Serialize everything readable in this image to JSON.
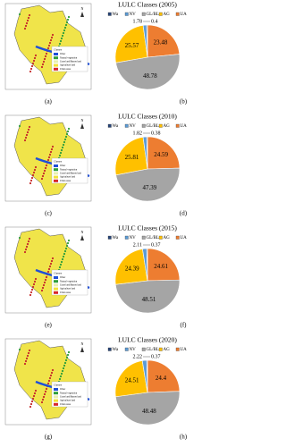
{
  "chart_data": [
    {
      "type": "pie",
      "title": "LULC Classes (2005)",
      "categories": [
        "Wa",
        "NV",
        "GL/BL",
        "AG",
        "UA"
      ],
      "values": [
        0.4,
        1.78,
        48.78,
        25.57,
        23.48
      ],
      "colors": [
        "#264478",
        "#5b9bd5",
        "#a5a5a5",
        "#ffc000",
        "#ed7d31"
      ]
    },
    {
      "type": "pie",
      "title": "LULC Classes (2010)",
      "categories": [
        "Wa",
        "NV",
        "GL/BL",
        "AG",
        "UA"
      ],
      "values": [
        0.38,
        1.82,
        47.39,
        25.81,
        24.59
      ],
      "colors": [
        "#264478",
        "#5b9bd5",
        "#a5a5a5",
        "#ffc000",
        "#ed7d31"
      ]
    },
    {
      "type": "pie",
      "title": "LULC Classes (2015)",
      "categories": [
        "Wa",
        "NV",
        "GL/BL",
        "AG",
        "UA"
      ],
      "values": [
        0.37,
        2.11,
        48.51,
        24.39,
        24.61
      ],
      "colors": [
        "#264478",
        "#5b9bd5",
        "#a5a5a5",
        "#ffc000",
        "#ed7d31"
      ]
    },
    {
      "type": "pie",
      "title": "LULC Classes (2020)",
      "categories": [
        "Wa",
        "NV",
        "GL/BL",
        "AG",
        "UA"
      ],
      "values": [
        0.37,
        2.22,
        48.48,
        24.51,
        24.4
      ],
      "colors": [
        "#264478",
        "#5b9bd5",
        "#a5a5a5",
        "#ffc000",
        "#ed7d31"
      ]
    }
  ],
  "panel_labels": [
    "(a)",
    "(b)",
    "(c)",
    "(d)",
    "(e)",
    "(f)",
    "(g)",
    "(h)"
  ],
  "map_legend": {
    "title": "Classes",
    "items": [
      "Water",
      "Natural vegetation",
      "Grass land/Barren land",
      "Agriculture land",
      "Urban Area"
    ],
    "colors": [
      "#1f4fd8",
      "#2e9e3a",
      "#e8f0b0",
      "#f2e23a",
      "#d8262a"
    ]
  },
  "compass": "N"
}
